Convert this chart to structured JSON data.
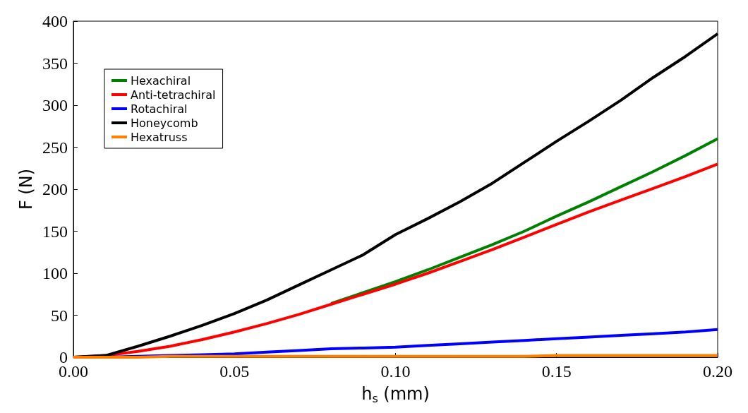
{
  "chart_data": {
    "type": "line",
    "xlabel": "h$_{s}$ (mm)",
    "ylabel": "F (N)",
    "x": [
      0,
      0.01,
      0.02,
      0.03,
      0.04,
      0.05,
      0.06,
      0.07,
      0.08,
      0.09,
      0.1,
      0.11,
      0.12,
      0.13,
      0.14,
      0.15,
      0.16,
      0.17,
      0.18,
      0.19,
      0.2
    ],
    "series": [
      {
        "name": "Hexachiral",
        "color": "#008000",
        "values": [
          null,
          null,
          null,
          null,
          null,
          null,
          null,
          null,
          64,
          77,
          90,
          104,
          119,
          134,
          150,
          168,
          185,
          203,
          221,
          240,
          260
        ]
      },
      {
        "name": "Anti-tetrachiral",
        "color": "#ff0000",
        "values": [
          0,
          2,
          7,
          13,
          21,
          30,
          40,
          51,
          63,
          75,
          87,
          100,
          114,
          128,
          143,
          158,
          173,
          187,
          201,
          215,
          230
        ]
      },
      {
        "name": "Rotachiral",
        "color": "#0000ff",
        "values": [
          0,
          0,
          1,
          2,
          3,
          4,
          6,
          8,
          10,
          11,
          12,
          14,
          16,
          18,
          20,
          22,
          24,
          26,
          28,
          30,
          33
        ]
      },
      {
        "name": "Honeycomb",
        "color": "#000000",
        "values": [
          0,
          2,
          13,
          25,
          38,
          52,
          68,
          86,
          104,
          122,
          146,
          165,
          185,
          207,
          232,
          257,
          281,
          306,
          333,
          358,
          385
        ]
      },
      {
        "name": "Hexatruss",
        "color": "#ff8000",
        "values": [
          0,
          0,
          0,
          1,
          1,
          1,
          1,
          1,
          1,
          1,
          1,
          1,
          1,
          1,
          1,
          2,
          2,
          2,
          2,
          2,
          2
        ]
      }
    ],
    "xlim": [
      0,
      0.2
    ],
    "xticks": [
      {
        "value": 0,
        "label": "0.00"
      },
      0.05,
      {
        "value": 0.1,
        "label": "0.10"
      },
      0.15,
      {
        "value": 0.2,
        "label": "0.20"
      }
    ],
    "ylim": [
      0,
      400
    ],
    "yticks": [
      0,
      50,
      100,
      150,
      200,
      250,
      300,
      350,
      400
    ],
    "grid": false,
    "legend": "top left",
    "marker": "none",
    "line_style": "solid"
  }
}
